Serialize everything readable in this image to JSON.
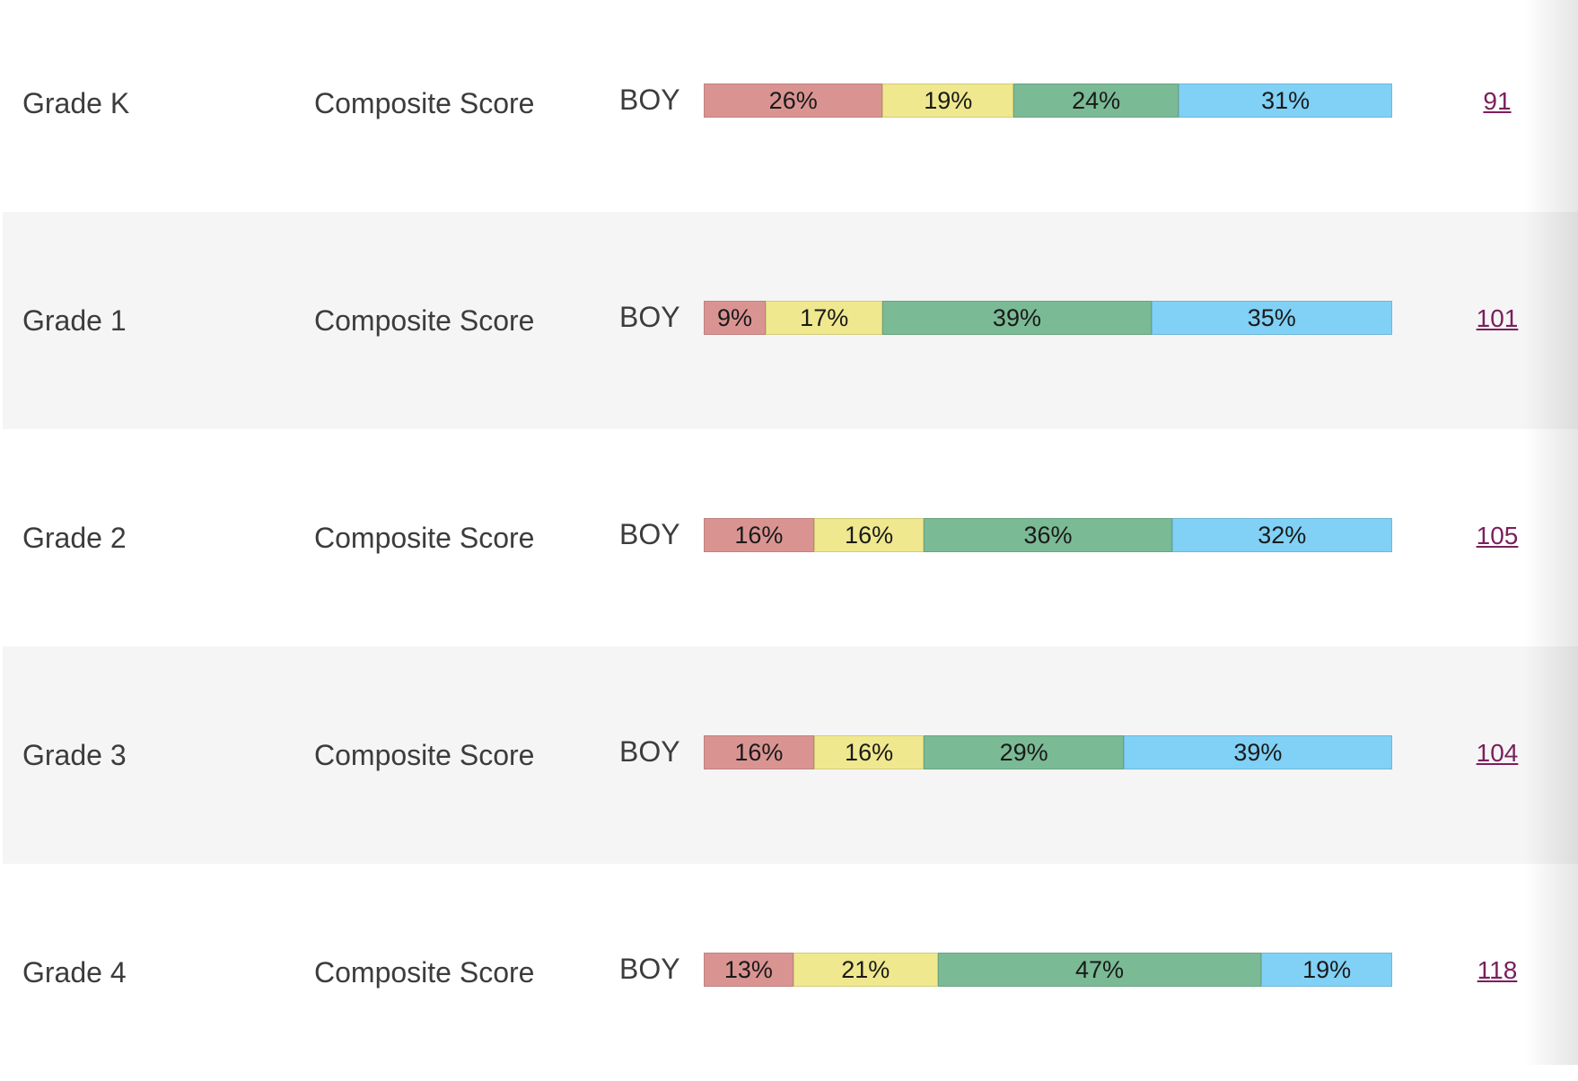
{
  "colors": {
    "band_1": "#d99492",
    "band_2": "#efe88e",
    "band_3": "#7aba95",
    "band_4": "#80d1f5",
    "link": "#7a1f5c"
  },
  "rows": [
    {
      "grade": "Grade K",
      "measure": "Composite Score",
      "period": "BOY",
      "segments": [
        {
          "value": 26,
          "label": "26%"
        },
        {
          "value": 19,
          "label": "19%"
        },
        {
          "value": 24,
          "label": "24%"
        },
        {
          "value": 31,
          "label": "31%"
        }
      ],
      "count": "91"
    },
    {
      "grade": "Grade 1",
      "measure": "Composite Score",
      "period": "BOY",
      "segments": [
        {
          "value": 9,
          "label": "9%"
        },
        {
          "value": 17,
          "label": "17%"
        },
        {
          "value": 39,
          "label": "39%"
        },
        {
          "value": 35,
          "label": "35%"
        }
      ],
      "count": "101"
    },
    {
      "grade": "Grade 2",
      "measure": "Composite Score",
      "period": "BOY",
      "segments": [
        {
          "value": 16,
          "label": "16%"
        },
        {
          "value": 16,
          "label": "16%"
        },
        {
          "value": 36,
          "label": "36%"
        },
        {
          "value": 32,
          "label": "32%"
        }
      ],
      "count": "105"
    },
    {
      "grade": "Grade 3",
      "measure": "Composite Score",
      "period": "BOY",
      "segments": [
        {
          "value": 16,
          "label": "16%"
        },
        {
          "value": 16,
          "label": "16%"
        },
        {
          "value": 29,
          "label": "29%"
        },
        {
          "value": 39,
          "label": "39%"
        }
      ],
      "count": "104"
    },
    {
      "grade": "Grade 4",
      "measure": "Composite Score",
      "period": "BOY",
      "segments": [
        {
          "value": 13,
          "label": "13%"
        },
        {
          "value": 21,
          "label": "21%"
        },
        {
          "value": 47,
          "label": "47%"
        },
        {
          "value": 19,
          "label": "19%"
        }
      ],
      "count": "118"
    }
  ]
}
